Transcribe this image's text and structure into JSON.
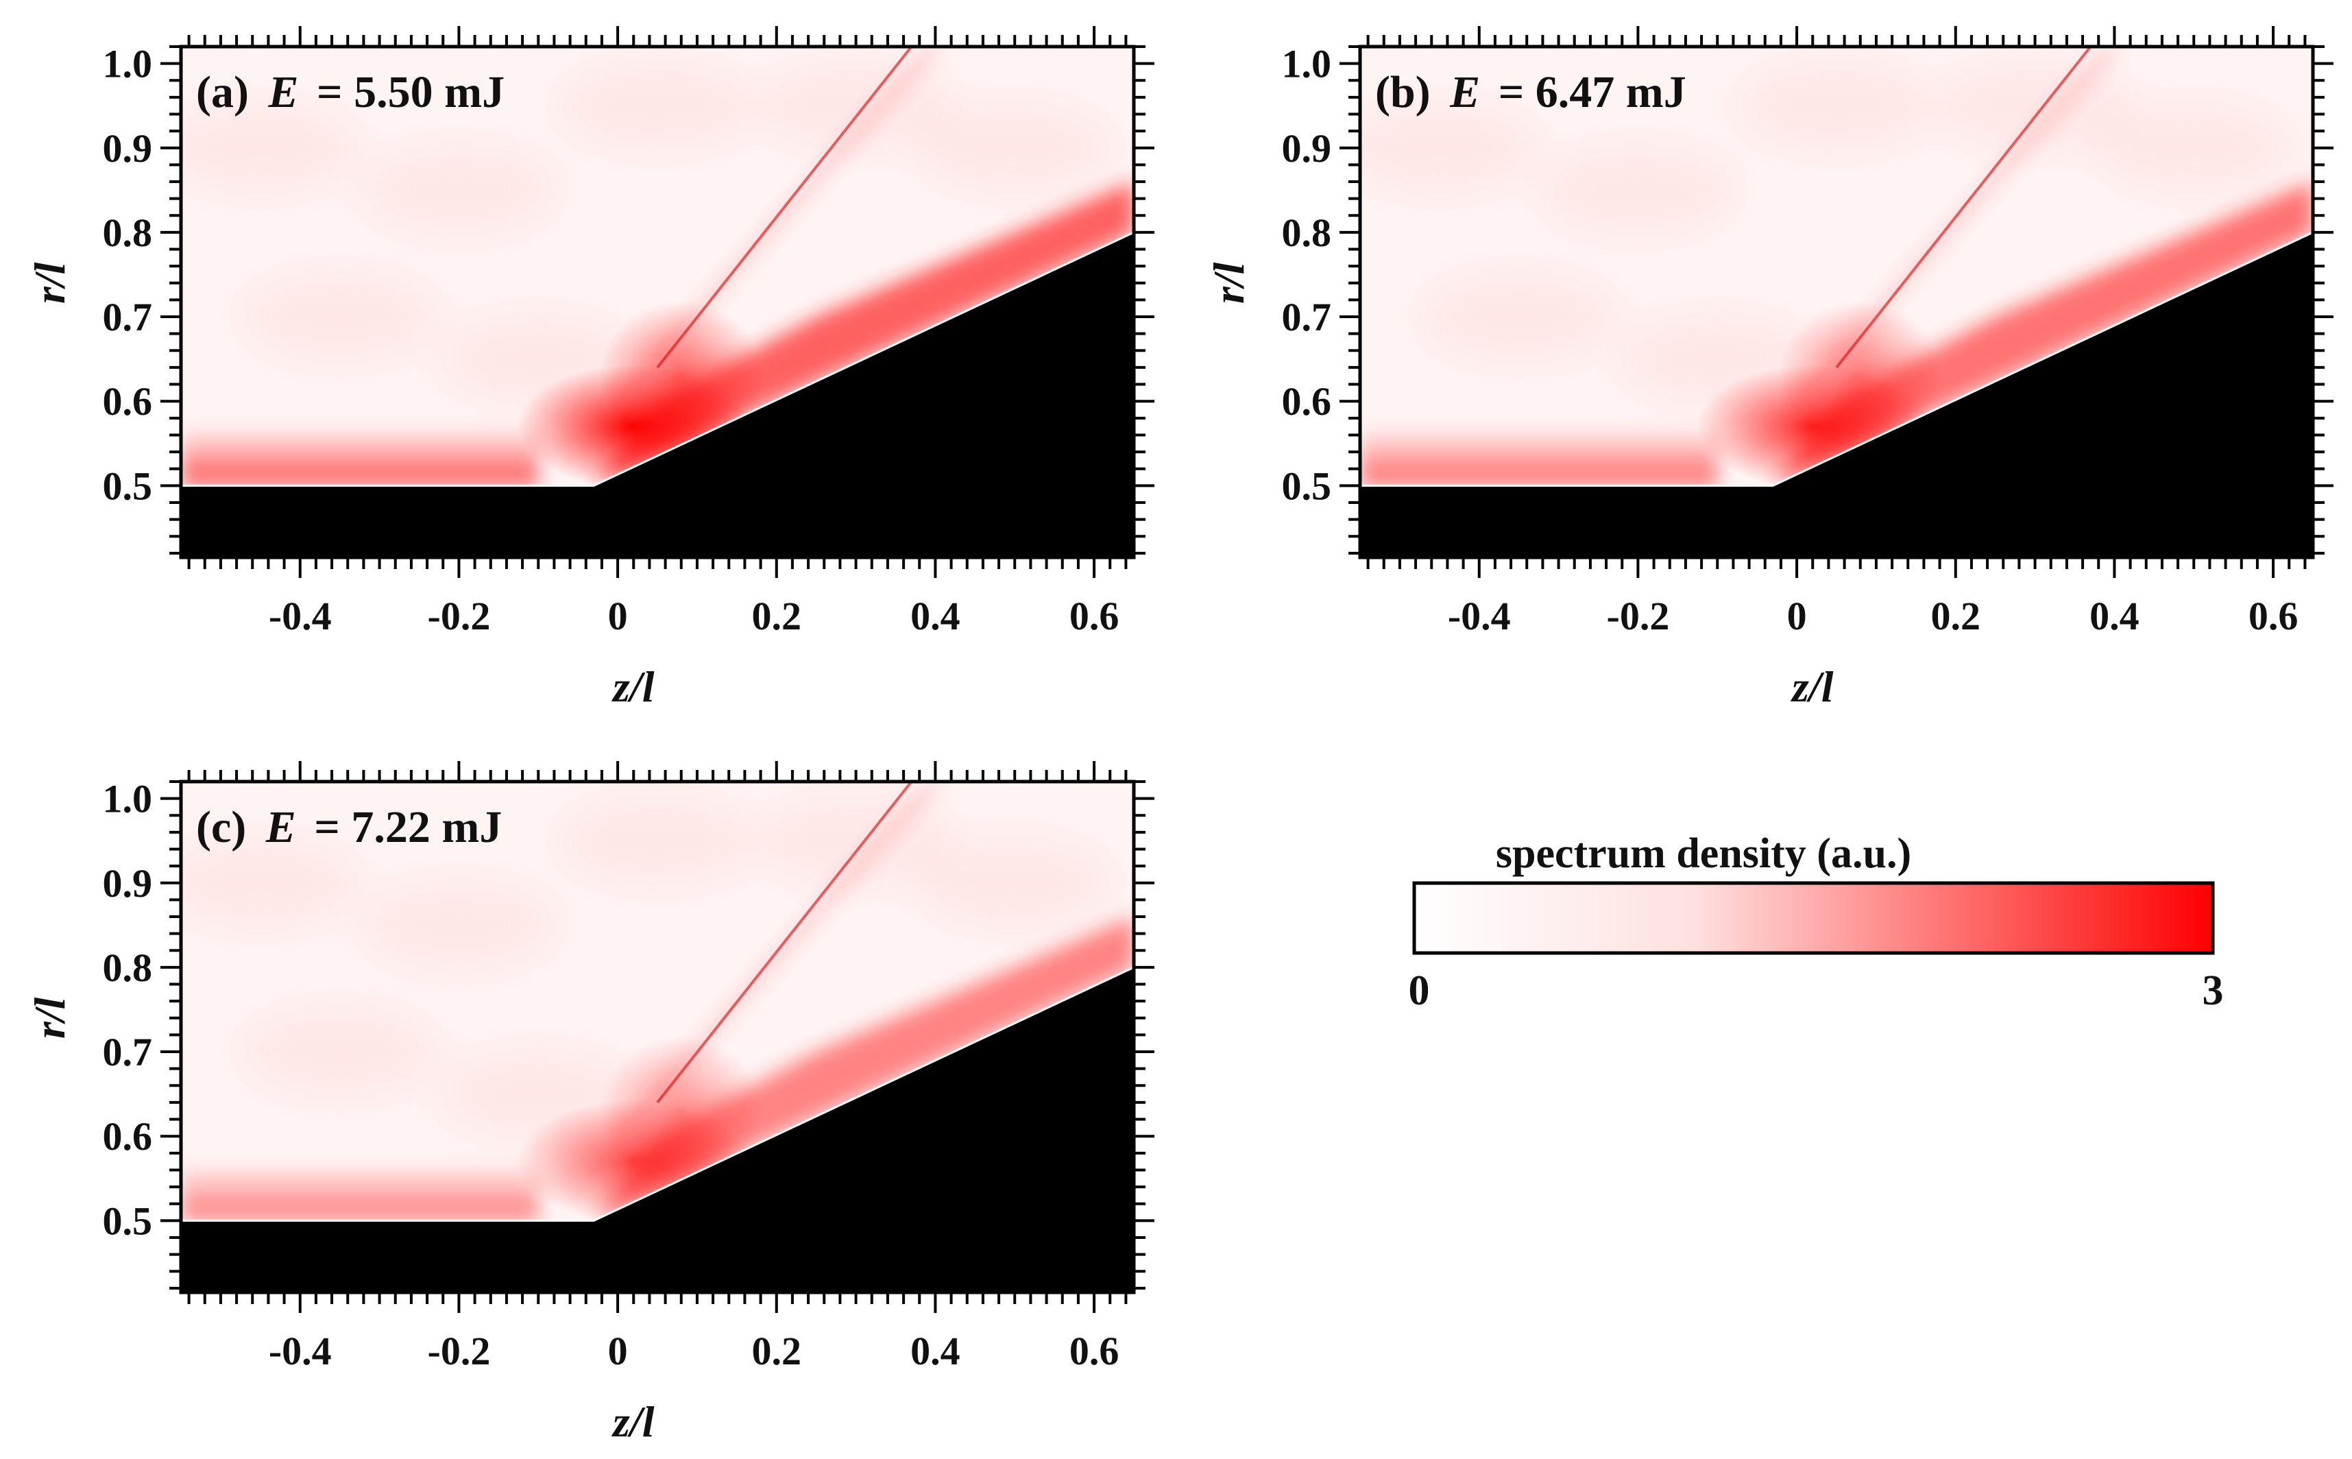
{
  "chart_data": [
    {
      "type": "heatmap",
      "panel": "(a)",
      "energy_symbol": "E",
      "energy_value": "= 5.50 mJ",
      "xlabel": "z/l",
      "ylabel": "r/l",
      "xlim": [
        -0.55,
        0.65
      ],
      "ylim": [
        0.415,
        1.02
      ],
      "x_ticks": [
        -0.4,
        -0.2,
        0,
        0.2,
        0.4,
        0.6
      ],
      "x_tick_labels": [
        "-0.4",
        "-0.2",
        "0",
        "0.2",
        "0.4",
        "0.6"
      ],
      "y_ticks": [
        0.5,
        0.6,
        0.7,
        0.8,
        0.9,
        1.0
      ],
      "y_tick_labels": [
        "0.5",
        "0.6",
        "0.7",
        "0.8",
        "0.9",
        "1.0"
      ],
      "intensity": 1.0,
      "body_outline": [
        [
          -0.55,
          0.5
        ],
        [
          -0.03,
          0.5
        ],
        [
          0.65,
          0.8
        ]
      ]
    },
    {
      "type": "heatmap",
      "panel": "(b)",
      "energy_symbol": "E",
      "energy_value": "= 6.47 mJ",
      "xlabel": "z/l",
      "ylabel": "r/l",
      "xlim": [
        -0.55,
        0.65
      ],
      "ylim": [
        0.415,
        1.02
      ],
      "x_ticks": [
        -0.4,
        -0.2,
        0,
        0.2,
        0.4,
        0.6
      ],
      "x_tick_labels": [
        "-0.4",
        "-0.2",
        "0",
        "0.2",
        "0.4",
        "0.6"
      ],
      "y_ticks": [
        0.5,
        0.6,
        0.7,
        0.8,
        0.9,
        1.0
      ],
      "y_tick_labels": [
        "0.5",
        "0.6",
        "0.7",
        "0.8",
        "0.9",
        "1.0"
      ],
      "intensity": 0.85,
      "body_outline": [
        [
          -0.55,
          0.5
        ],
        [
          -0.03,
          0.5
        ],
        [
          0.65,
          0.8
        ]
      ]
    },
    {
      "type": "heatmap",
      "panel": "(c)",
      "energy_symbol": "E",
      "energy_value": "= 7.22 mJ",
      "xlabel": "z/l",
      "ylabel": "r/l",
      "xlim": [
        -0.55,
        0.65
      ],
      "ylim": [
        0.415,
        1.02
      ],
      "x_ticks": [
        -0.4,
        -0.2,
        0,
        0.2,
        0.4,
        0.6
      ],
      "x_tick_labels": [
        "-0.4",
        "-0.2",
        "0",
        "0.2",
        "0.4",
        "0.6"
      ],
      "y_ticks": [
        0.5,
        0.6,
        0.7,
        0.8,
        0.9,
        1.0
      ],
      "y_tick_labels": [
        "0.5",
        "0.6",
        "0.7",
        "0.8",
        "0.9",
        "1.0"
      ],
      "intensity": 0.7,
      "body_outline": [
        [
          -0.55,
          0.5
        ],
        [
          -0.03,
          0.5
        ],
        [
          0.65,
          0.8
        ]
      ]
    }
  ],
  "colorbar": {
    "title": "spectrum density (a.u.)",
    "min_label": "0",
    "max_label": "3",
    "min": 0,
    "max": 3,
    "color_low": "#ffffff",
    "color_high": "#ff0000"
  },
  "colors": {
    "body": "#000000",
    "frame": "#000000"
  }
}
